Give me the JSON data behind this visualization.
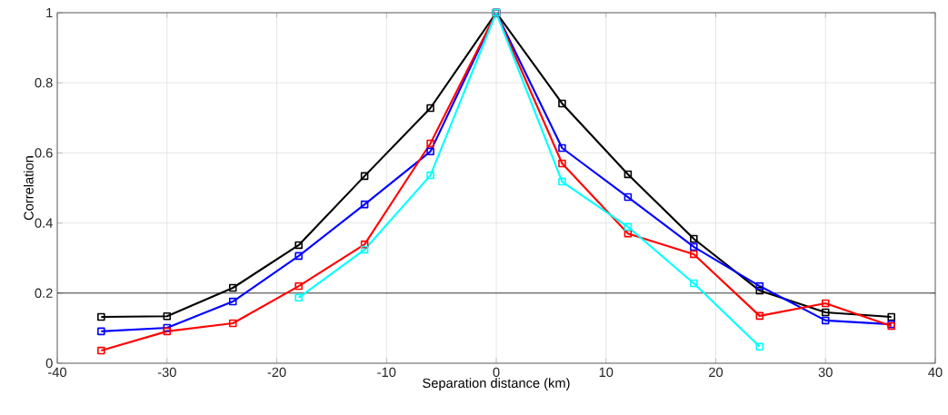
{
  "chart_data": {
    "type": "line",
    "xlabel": "Separation distance (km)",
    "ylabel": "Correlation",
    "x": [
      -36,
      -30,
      -24,
      -18,
      -12,
      -6,
      0,
      6,
      12,
      18,
      24,
      30,
      36
    ],
    "series": [
      {
        "color": "#000000",
        "values": [
          0.132,
          0.134,
          0.215,
          0.337,
          0.534,
          0.728,
          1,
          0.741,
          0.539,
          0.355,
          0.207,
          0.145,
          0.132
        ]
      },
      {
        "color": "#0000ff",
        "values": [
          0.091,
          0.101,
          0.176,
          0.306,
          0.453,
          0.604,
          1,
          0.614,
          0.474,
          0.332,
          0.22,
          0.122,
          0.111
        ]
      },
      {
        "color": "#ff0000",
        "values": [
          0.036,
          0.091,
          0.114,
          0.22,
          0.339,
          0.627,
          1,
          0.57,
          0.37,
          0.311,
          0.135,
          0.171,
          0.106
        ]
      },
      {
        "color": "#00ffff",
        "values": [
          null,
          null,
          null,
          0.187,
          0.324,
          0.536,
          1,
          0.518,
          0.389,
          0.228,
          0.047,
          null,
          null
        ]
      }
    ],
    "xlim": [
      -40,
      40
    ],
    "xticks": [
      -40,
      -30,
      -20,
      -10,
      0,
      10,
      20,
      30,
      40
    ],
    "ylim": [
      0,
      1
    ],
    "yticks": [
      0,
      0.2,
      0.4,
      0.6,
      0.8,
      1
    ],
    "ref_lines": [
      {
        "axis": "y",
        "value": 0.2,
        "color": "#000000"
      }
    ],
    "grid": true,
    "marker": "square",
    "line_style": "solid"
  }
}
